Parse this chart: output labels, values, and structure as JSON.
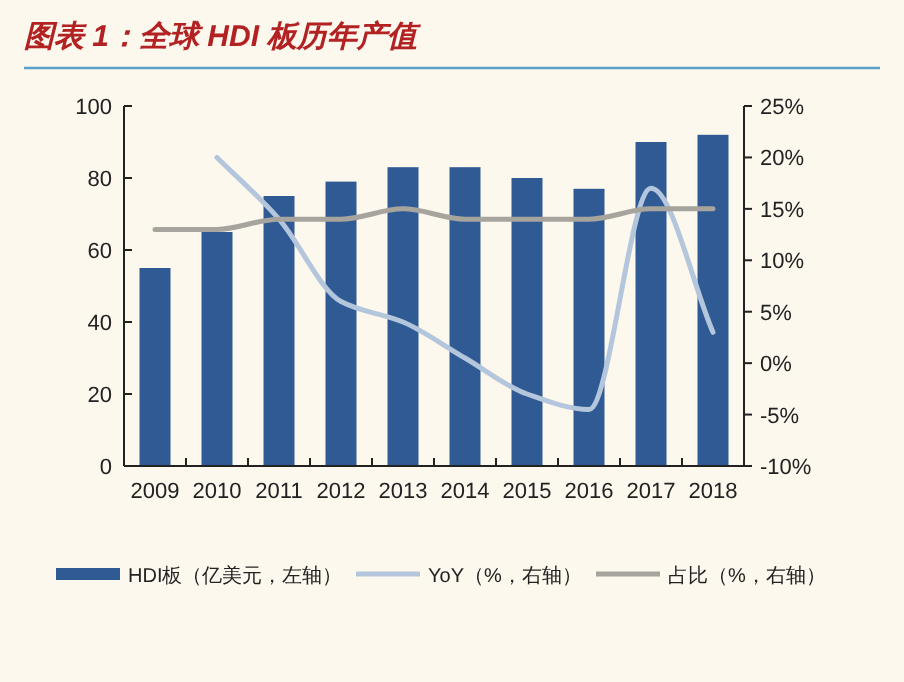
{
  "chart_data": {
    "type": "bar",
    "title": "图表 1：全球 HDI 板历年产值",
    "categories": [
      "2009",
      "2010",
      "2011",
      "2012",
      "2013",
      "2014",
      "2015",
      "2016",
      "2017",
      "2018"
    ],
    "series": [
      {
        "name": "HDI板（亿美元，左轴）",
        "color": "#2f5a94",
        "values": [
          55,
          65,
          75,
          79,
          83,
          83,
          80,
          77,
          90,
          92
        ]
      },
      {
        "name": "YoY（%，右轴）",
        "type": "line",
        "axis": "y2",
        "color": "#b4c6dc",
        "values": [
          null,
          20,
          14,
          6,
          4,
          0.5,
          -3,
          -4.5,
          17,
          3
        ]
      },
      {
        "name": "占比（%，右轴）",
        "type": "line",
        "axis": "y2",
        "color": "#a6a49c",
        "values": [
          13,
          13,
          14,
          14,
          15,
          14,
          14,
          14,
          15,
          15
        ]
      }
    ],
    "ylim": [
      0,
      100
    ],
    "yticks": [
      0,
      20,
      40,
      60,
      80,
      100
    ],
    "y2lim": [
      -10,
      25
    ],
    "y2ticks": [
      {
        "value": -10,
        "label": "-10%"
      },
      {
        "value": -5,
        "label": "-5%"
      },
      {
        "value": 0,
        "label": "0%"
      },
      {
        "value": 5,
        "label": "5%"
      },
      {
        "value": 10,
        "label": "10%"
      },
      {
        "value": 15,
        "label": "15%"
      },
      {
        "value": 20,
        "label": "20%"
      },
      {
        "value": 25,
        "label": "25%"
      }
    ],
    "legend": "bottom",
    "grid": false
  }
}
